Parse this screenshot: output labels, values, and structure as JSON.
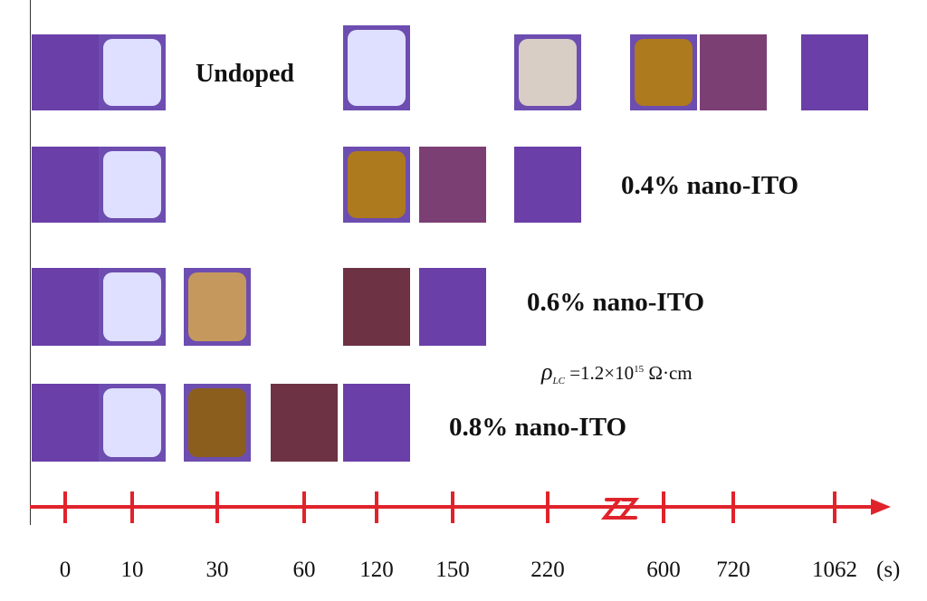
{
  "colors": {
    "purple": "#6b3ea6",
    "light": "#dcdcff",
    "amber": "#a8741e",
    "rose": "#7a3f70",
    "axis": "#e0232b"
  },
  "rows": [
    {
      "label": "Undoped",
      "swatches": [
        {
          "time": 0,
          "state": "purple"
        },
        {
          "time": 10,
          "state": "light"
        },
        {
          "time": 120,
          "state": "light"
        },
        {
          "time": 220,
          "state": "beige"
        },
        {
          "time": 600,
          "state": "amber"
        },
        {
          "time": 720,
          "state": "rose"
        },
        {
          "time": 1062,
          "state": "purple"
        }
      ]
    },
    {
      "label": "0.4% nano-ITO",
      "swatches": [
        {
          "time": 0,
          "state": "purple"
        },
        {
          "time": 10,
          "state": "light"
        },
        {
          "time": 120,
          "state": "amber"
        },
        {
          "time": 150,
          "state": "rose"
        },
        {
          "time": 220,
          "state": "purple"
        }
      ]
    },
    {
      "label": "0.6% nano-ITO",
      "swatches": [
        {
          "time": 0,
          "state": "purple"
        },
        {
          "time": 10,
          "state": "light"
        },
        {
          "time": 30,
          "state": "tan"
        },
        {
          "time": 120,
          "state": "maroon"
        },
        {
          "time": 150,
          "state": "purple"
        }
      ]
    },
    {
      "label": "0.8% nano-ITO",
      "swatches": [
        {
          "time": 0,
          "state": "purple"
        },
        {
          "time": 10,
          "state": "light"
        },
        {
          "time": 30,
          "state": "ochre"
        },
        {
          "time": 60,
          "state": "maroon"
        },
        {
          "time": 120,
          "state": "purple"
        }
      ]
    }
  ],
  "resistivity": {
    "symbol": "ρ",
    "subscript": "LC",
    "value": "=1.2×10",
    "exponent": "15",
    "unit": "Ω·cm"
  },
  "axis": {
    "ticks": [
      "0",
      "10",
      "30",
      "60",
      "120",
      "150",
      "220",
      "600",
      "720",
      "1062"
    ],
    "unit": "(s)",
    "break_between": [
      "220",
      "600"
    ]
  }
}
